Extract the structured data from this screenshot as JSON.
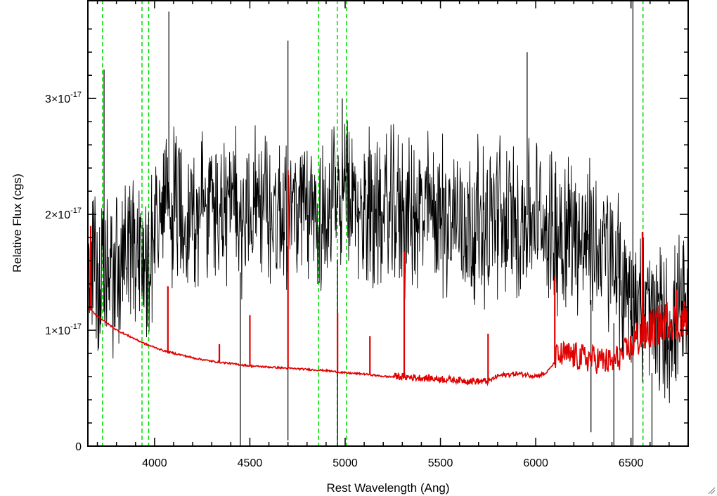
{
  "chart_data": {
    "type": "line",
    "xlabel": "Rest Wavelength (Ang)",
    "ylabel": "Relative Flux (cgs)",
    "xlim": [
      3650,
      6800
    ],
    "ylim": [
      0,
      3.85e-17
    ],
    "x_ticks": [
      {
        "value": 4000,
        "label": "4000"
      },
      {
        "value": 4500,
        "label": "4500"
      },
      {
        "value": 5000,
        "label": "5000"
      },
      {
        "value": 5500,
        "label": "5500"
      },
      {
        "value": 6000,
        "label": "6000"
      },
      {
        "value": 6500,
        "label": "6500"
      }
    ],
    "y_ticks": [
      {
        "value": 0,
        "mantissa": "0",
        "exponent": ""
      },
      {
        "value": 1e-17,
        "mantissa": "1×10",
        "exponent": "-17"
      },
      {
        "value": 2e-17,
        "mantissa": "2×10",
        "exponent": "-17"
      },
      {
        "value": 3e-17,
        "mantissa": "3×10",
        "exponent": "-17"
      }
    ],
    "grid": false,
    "colors": {
      "observed": "#000000",
      "model": "#e00000",
      "lines": "#00dd00"
    },
    "vertical_lines": [
      3727,
      3934,
      3969,
      4861,
      4959,
      5007,
      6563
    ],
    "series": [
      {
        "color": "#000000",
        "x": [
          3660,
          3680,
          3700,
          3720,
          3740,
          3760,
          3780,
          3800,
          3820,
          3840,
          3860,
          3880,
          3900,
          3920,
          3940,
          3960,
          3980,
          4000,
          4050,
          4100,
          4150,
          4200,
          4250,
          4300,
          4350,
          4400,
          4450,
          4500,
          4550,
          4600,
          4650,
          4700,
          4750,
          4800,
          4850,
          4900,
          4950,
          5000,
          5050,
          5100,
          5150,
          5200,
          5250,
          5300,
          5350,
          5400,
          5450,
          5500,
          5550,
          5600,
          5650,
          5700,
          5750,
          5800,
          5850,
          5900,
          5950,
          6000,
          6050,
          6100,
          6150,
          6200,
          6250,
          6300,
          6350,
          6400,
          6450,
          6500,
          6550,
          6600,
          6650,
          6700,
          6750,
          6800
        ],
        "y": [
          1.4e-17,
          1.6e-17,
          1.45e-17,
          1.5e-17,
          1.3e-17,
          1.55e-17,
          1.4e-17,
          1.6e-17,
          1.5e-17,
          1.65e-17,
          1.6e-17,
          1.75e-17,
          1.7e-17,
          1.8e-17,
          1.6e-17,
          1.5e-17,
          1.75e-17,
          1.9e-17,
          2e-17,
          2.1e-17,
          2.05e-17,
          2e-17,
          2.05e-17,
          2.1e-17,
          2e-17,
          2.05e-17,
          2e-17,
          2.1e-17,
          2.15e-17,
          2e-17,
          2.05e-17,
          2.1e-17,
          2e-17,
          1.95e-17,
          2.05e-17,
          2e-17,
          2.1e-17,
          2.15e-17,
          2.05e-17,
          2e-17,
          2.1e-17,
          2e-17,
          2.05e-17,
          2e-17,
          1.95e-17,
          2e-17,
          2.05e-17,
          2e-17,
          1.95e-17,
          2e-17,
          1.9e-17,
          1.95e-17,
          1.9e-17,
          2e-17,
          1.95e-17,
          1.9e-17,
          2e-17,
          1.95e-17,
          1.9e-17,
          1.85e-17,
          1.9e-17,
          1.85e-17,
          1.8e-17,
          1.75e-17,
          1.7e-17,
          1.6e-17,
          1.4e-17,
          1.3e-17,
          1.2e-17,
          1.15e-17,
          1.05e-17,
          1e-17,
          1.1e-17,
          1.1e-17
        ]
      },
      {
        "color": "#e00000",
        "x": [
          3660,
          3700,
          3750,
          3800,
          3850,
          3900,
          3950,
          4000,
          4050,
          4100,
          4150,
          4200,
          4300,
          4400,
          4500,
          4600,
          4700,
          4800,
          4900,
          5000,
          5100,
          5200,
          5300,
          5400,
          5500,
          5600,
          5700,
          5750,
          5800,
          5900,
          6000,
          6050,
          6100,
          6150,
          6200,
          6250,
          6300,
          6350,
          6400,
          6450,
          6500,
          6550,
          6600,
          6650,
          6700,
          6750,
          6800
        ],
        "y": [
          1.18e-17,
          1.12e-17,
          1.06e-17,
          1e-17,
          9.6e-18,
          9.2e-18,
          8.8e-18,
          8.5e-18,
          8.2e-18,
          8e-18,
          7.8e-18,
          7.6e-18,
          7.3e-18,
          7.1e-18,
          6.9e-18,
          6.8e-18,
          6.7e-18,
          6.6e-18,
          6.5e-18,
          6.3e-18,
          6.2e-18,
          6e-18,
          5.9e-18,
          5.8e-18,
          5.7e-18,
          5.6e-18,
          5.5e-18,
          5.5e-18,
          6e-18,
          6.2e-18,
          6e-18,
          6.2e-18,
          7.2e-18,
          7.5e-18,
          7.4e-18,
          7.2e-18,
          7.2e-18,
          7e-18,
          6.8e-18,
          7.5e-18,
          8.2e-18,
          9e-18,
          9.5e-18,
          1e-17,
          1.05e-17,
          1e-17,
          1.08e-17
        ]
      }
    ],
    "model_spikes": [
      {
        "x": 3665,
        "y": 1.9e-17
      },
      {
        "x": 4070,
        "y": 1.38e-17
      },
      {
        "x": 4340,
        "y": 8.8e-18
      },
      {
        "x": 4500,
        "y": 1.13e-17
      },
      {
        "x": 4700,
        "y": 2.38e-17
      },
      {
        "x": 4960,
        "y": 1.15e-17
      },
      {
        "x": 5130,
        "y": 9.5e-18
      },
      {
        "x": 5310,
        "y": 1.68e-17
      },
      {
        "x": 5750,
        "y": 9.7e-18
      },
      {
        "x": 6100,
        "y": 1.45e-17
      },
      {
        "x": 6560,
        "y": 1.85e-17
      },
      {
        "x": 6740,
        "y": 1.35e-17
      }
    ],
    "observed_spikes": [
      {
        "x": 3735,
        "y": 3.25e-17
      },
      {
        "x": 4075,
        "y": 3.75e-17
      },
      {
        "x": 4700,
        "y": 3.5e-17
      },
      {
        "x": 4985,
        "y": 3e-17
      },
      {
        "x": 5955,
        "y": 3.4e-17
      },
      {
        "x": 6510,
        "y": 3.85e-17
      }
    ],
    "observed_dips": [
      {
        "x": 4450,
        "y": 0.0
      },
      {
        "x": 4700,
        "y": 5e-19
      },
      {
        "x": 4960,
        "y": 0.0
      },
      {
        "x": 6290,
        "y": 1.2e-18
      },
      {
        "x": 6410,
        "y": 0.0
      },
      {
        "x": 6510,
        "y": 0.0
      },
      {
        "x": 6610,
        "y": 0.0
      }
    ]
  }
}
